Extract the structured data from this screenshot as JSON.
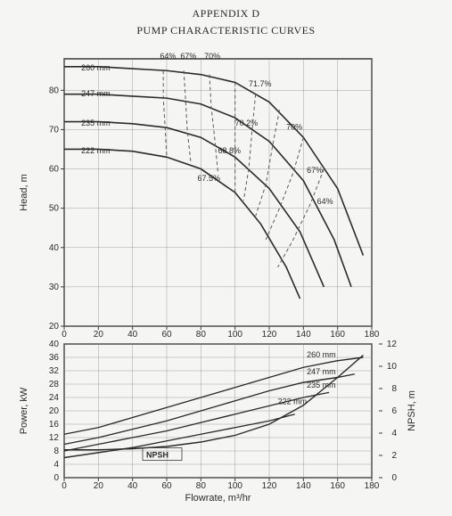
{
  "titles": {
    "line1": "APPENDIX   D",
    "line2": "PUMP CHARACTERISTIC CURVES"
  },
  "colors": {
    "bg": "#f5f5f3",
    "frame": "#3a3a3a",
    "grid": "#8a8a88",
    "curve": "#2a2a2a",
    "dashed": "#5a5a58",
    "text": "#2a2a2a"
  },
  "fonts": {
    "title_size": 12,
    "axis_label_size": 11,
    "tick_size": 10,
    "annotation_size": 9
  },
  "top_chart": {
    "xlabel": "",
    "ylabel": "Head, m",
    "xlim": [
      0,
      180
    ],
    "ylim": [
      20,
      88
    ],
    "xtick_step": 20,
    "yticks": [
      20,
      30,
      40,
      50,
      60,
      70,
      80
    ],
    "impeller_curves": [
      {
        "label": "260 mm",
        "label_x": 10,
        "label_y": 85,
        "pts": [
          [
            0,
            86
          ],
          [
            20,
            86
          ],
          [
            40,
            85.5
          ],
          [
            60,
            85
          ],
          [
            80,
            84
          ],
          [
            100,
            82
          ],
          [
            120,
            77
          ],
          [
            140,
            68
          ],
          [
            160,
            55
          ],
          [
            175,
            38
          ]
        ]
      },
      {
        "label": "247 mm",
        "label_x": 10,
        "label_y": 78.5,
        "pts": [
          [
            0,
            79
          ],
          [
            20,
            79
          ],
          [
            40,
            78.5
          ],
          [
            60,
            78
          ],
          [
            80,
            76.5
          ],
          [
            100,
            73
          ],
          [
            120,
            67
          ],
          [
            140,
            57
          ],
          [
            158,
            42
          ],
          [
            168,
            30
          ]
        ]
      },
      {
        "label": "235 mm",
        "label_x": 10,
        "label_y": 71,
        "pts": [
          [
            0,
            72
          ],
          [
            20,
            72
          ],
          [
            40,
            71.5
          ],
          [
            60,
            70.5
          ],
          [
            80,
            68
          ],
          [
            100,
            63
          ],
          [
            120,
            55
          ],
          [
            138,
            44
          ],
          [
            152,
            30
          ]
        ]
      },
      {
        "label": "222 mm",
        "label_x": 10,
        "label_y": 64,
        "pts": [
          [
            0,
            65
          ],
          [
            20,
            65
          ],
          [
            40,
            64.5
          ],
          [
            60,
            63
          ],
          [
            80,
            60
          ],
          [
            100,
            54
          ],
          [
            115,
            46
          ],
          [
            130,
            35
          ],
          [
            138,
            27
          ]
        ]
      }
    ],
    "efficiency_curves": [
      {
        "label": "64%",
        "label_x": 56,
        "label_y": 88,
        "pts": [
          [
            58,
            85
          ],
          [
            58,
            78
          ],
          [
            59,
            71
          ],
          [
            60,
            63
          ]
        ]
      },
      {
        "label": "67%",
        "label_x": 68,
        "label_y": 88,
        "pts": [
          [
            70,
            85
          ],
          [
            71,
            78
          ],
          [
            72,
            70
          ],
          [
            74,
            62
          ]
        ]
      },
      {
        "label": "70%",
        "label_x": 82,
        "label_y": 88,
        "pts": [
          [
            85,
            84
          ],
          [
            86,
            76
          ],
          [
            88,
            68
          ],
          [
            90,
            59
          ]
        ]
      },
      {
        "label": "71.7%",
        "label_x": 108,
        "label_y": 81,
        "pts": [
          [
            100,
            82
          ],
          [
            100,
            73
          ],
          [
            100,
            63
          ],
          [
            100,
            54
          ]
        ]
      },
      {
        "label": "70.2%",
        "label_x": 100,
        "label_y": 71,
        "pts": [
          [
            112,
            79
          ],
          [
            110,
            70
          ],
          [
            108,
            60
          ],
          [
            105,
            52
          ]
        ]
      },
      {
        "label": "70%",
        "label_x": 130,
        "label_y": 70,
        "pts": [
          [
            126,
            75
          ],
          [
            122,
            66
          ],
          [
            118,
            56
          ],
          [
            112,
            48
          ]
        ]
      },
      {
        "label": "68.8%",
        "label_x": 90,
        "label_y": 64,
        "pts": []
      },
      {
        "label": "67.5%",
        "label_x": 78,
        "label_y": 57,
        "pts": []
      },
      {
        "label": "67%",
        "label_x": 142,
        "label_y": 59,
        "pts": [
          [
            140,
            68
          ],
          [
            134,
            59
          ],
          [
            126,
            50
          ],
          [
            118,
            42
          ]
        ]
      },
      {
        "label": "64%",
        "label_x": 148,
        "label_y": 51,
        "pts": [
          [
            152,
            60
          ],
          [
            144,
            51
          ],
          [
            134,
            42
          ],
          [
            125,
            35
          ]
        ]
      }
    ]
  },
  "bottom_chart": {
    "xlabel": "Flowrate, m³/hr",
    "ylabel": "Power, kW",
    "ylabel2": "NPSH, m",
    "xlim": [
      0,
      180
    ],
    "ylim": [
      0,
      40
    ],
    "y2lim": [
      0,
      12
    ],
    "xtick_step": 20,
    "yticks": [
      0,
      4,
      8,
      12,
      16,
      20,
      24,
      28,
      32,
      36,
      40
    ],
    "y2ticks": [
      0,
      2,
      4,
      6,
      8,
      10,
      12
    ],
    "power_curves": [
      {
        "label": "260 mm",
        "label_x": 142,
        "label_y": 36,
        "pts": [
          [
            0,
            13
          ],
          [
            20,
            15
          ],
          [
            40,
            18
          ],
          [
            60,
            21
          ],
          [
            80,
            24
          ],
          [
            100,
            27
          ],
          [
            120,
            30
          ],
          [
            140,
            33
          ],
          [
            160,
            35
          ],
          [
            175,
            36
          ]
        ]
      },
      {
        "label": "247 mm",
        "label_x": 142,
        "label_y": 31,
        "pts": [
          [
            0,
            10
          ],
          [
            20,
            12
          ],
          [
            40,
            14.5
          ],
          [
            60,
            17
          ],
          [
            80,
            20
          ],
          [
            100,
            23
          ],
          [
            120,
            26
          ],
          [
            140,
            28.5
          ],
          [
            160,
            30
          ],
          [
            170,
            31
          ]
        ]
      },
      {
        "label": "235 mm",
        "label_x": 142,
        "label_y": 27,
        "pts": [
          [
            0,
            8
          ],
          [
            20,
            10
          ],
          [
            40,
            12
          ],
          [
            60,
            14
          ],
          [
            80,
            16.5
          ],
          [
            100,
            19
          ],
          [
            120,
            21.5
          ],
          [
            140,
            24
          ],
          [
            155,
            25.5
          ]
        ]
      },
      {
        "label": "222 mm",
        "label_x": 125,
        "label_y": 22,
        "pts": [
          [
            0,
            6
          ],
          [
            20,
            7.5
          ],
          [
            40,
            9
          ],
          [
            60,
            11
          ],
          [
            80,
            13
          ],
          [
            100,
            15
          ],
          [
            120,
            17
          ],
          [
            135,
            19
          ]
        ]
      }
    ],
    "npsh_curve": {
      "label": "NPSH",
      "label_x": 48,
      "label_y": 6,
      "pts": [
        [
          0,
          2.5
        ],
        [
          20,
          2.5
        ],
        [
          40,
          2.6
        ],
        [
          60,
          2.8
        ],
        [
          80,
          3.2
        ],
        [
          100,
          3.8
        ],
        [
          120,
          4.8
        ],
        [
          140,
          6.5
        ],
        [
          160,
          9
        ],
        [
          175,
          11
        ]
      ],
      "use_y2": true
    }
  }
}
